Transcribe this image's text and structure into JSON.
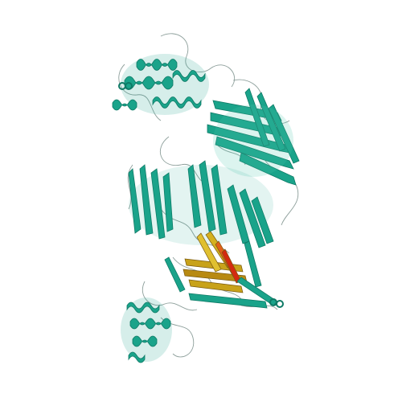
{
  "image": {
    "subject": "protein-ribbon-structure",
    "colors": {
      "background": "#ffffff",
      "chain_main": "#1aa38a",
      "chain_main_dark": "#0e7a66",
      "chain_main_light": "#4fc7b0",
      "loop": "#7a8f8a",
      "highlight_chain_a": "#c8a21a",
      "highlight_chain_b": "#e0601a",
      "highlight_chain_c": "#d42a10",
      "highlight_dark": "#7a5a10"
    }
  }
}
